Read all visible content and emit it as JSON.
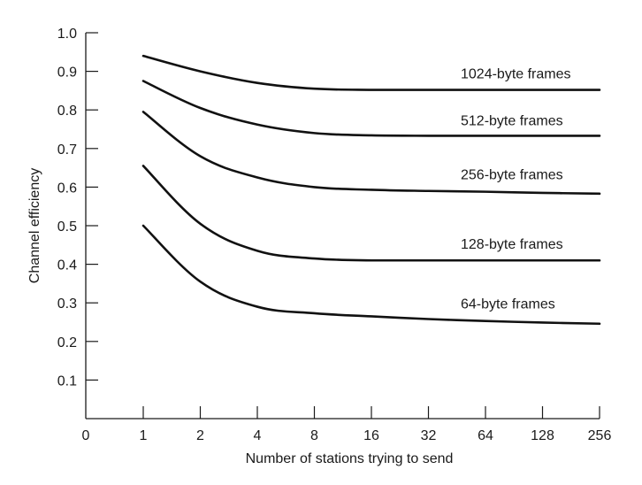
{
  "chart_data": {
    "type": "line",
    "xlabel": "Number of stations trying to send",
    "ylabel": "Channel efficiency",
    "x_categories": [
      "0",
      "1",
      "2",
      "4",
      "8",
      "16",
      "32",
      "64",
      "128",
      "256"
    ],
    "x_scale": "log2",
    "ylim": [
      0,
      1.0
    ],
    "y_ticks": [
      "0.1",
      "0.2",
      "0.3",
      "0.4",
      "0.5",
      "0.6",
      "0.7",
      "0.8",
      "0.9",
      "1.0"
    ],
    "grid": false,
    "legend": "labels placed directly next to each curve",
    "series": [
      {
        "name": "1024-byte frames",
        "x": [
          1,
          2,
          4,
          8,
          16,
          32,
          64,
          128,
          256
        ],
        "values": [
          0.94,
          0.9,
          0.87,
          0.855,
          0.852,
          0.852,
          0.852,
          0.852,
          0.852
        ]
      },
      {
        "name": "512-byte frames",
        "x": [
          1,
          2,
          4,
          8,
          16,
          32,
          64,
          128,
          256
        ],
        "values": [
          0.875,
          0.805,
          0.762,
          0.74,
          0.734,
          0.733,
          0.733,
          0.733,
          0.733
        ]
      },
      {
        "name": "256-byte frames",
        "x": [
          1,
          2,
          4,
          8,
          16,
          32,
          64,
          128,
          256
        ],
        "values": [
          0.795,
          0.68,
          0.625,
          0.6,
          0.593,
          0.59,
          0.588,
          0.585,
          0.583
        ]
      },
      {
        "name": "128-byte frames",
        "x": [
          1,
          2,
          4,
          8,
          16,
          32,
          64,
          128,
          256
        ],
        "values": [
          0.655,
          0.505,
          0.435,
          0.415,
          0.41,
          0.41,
          0.41,
          0.41,
          0.41
        ]
      },
      {
        "name": "64-byte frames",
        "x": [
          1,
          2,
          4,
          8,
          16,
          32,
          64,
          128,
          256
        ],
        "values": [
          0.5,
          0.355,
          0.29,
          0.273,
          0.265,
          0.258,
          0.253,
          0.249,
          0.246
        ]
      }
    ]
  }
}
